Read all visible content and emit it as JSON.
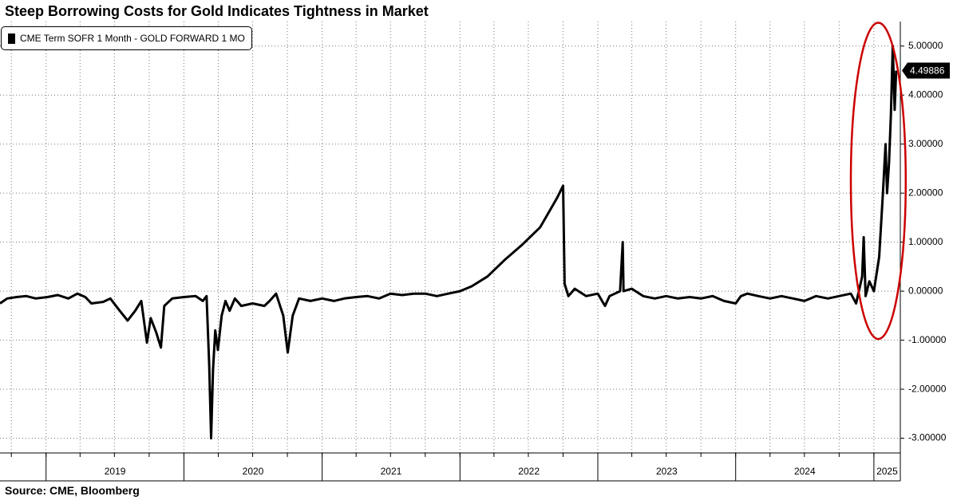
{
  "title": "Steep Borrowing Costs for Gold Indicates Tightness in Market",
  "source": "Source: CME, Bloomberg",
  "chart_data": {
    "type": "line",
    "title": "Steep Borrowing Costs for Gold Indicates Tightness in Market",
    "xlabel": "",
    "ylabel": "",
    "ylim": [
      -3.3,
      5.5
    ],
    "xlim": [
      "2018-09-01",
      "2025-03-12"
    ],
    "grid": true,
    "legend_position": "top-left",
    "line_color": "#000000",
    "highlight_color": "#cc0000",
    "y_ticks": [
      "5.00000",
      "4.00000",
      "3.00000",
      "2.00000",
      "1.00000",
      "0.00000",
      "-1.00000",
      "-2.00000",
      "-3.00000"
    ],
    "x_year_labels": [
      "2019",
      "2020",
      "2021",
      "2022",
      "2023",
      "2024",
      "2025"
    ],
    "last_value_label": "4.49886",
    "series": [
      {
        "name": "CME Term SOFR 1 Month - GOLD FORWARD 1 MO",
        "points": [
          [
            "2018-09-01",
            -0.25
          ],
          [
            "2018-09-20",
            -0.15
          ],
          [
            "2018-10-15",
            -0.12
          ],
          [
            "2018-11-10",
            -0.1
          ],
          [
            "2018-12-05",
            -0.15
          ],
          [
            "2019-01-05",
            -0.12
          ],
          [
            "2019-02-01",
            -0.08
          ],
          [
            "2019-03-01",
            -0.15
          ],
          [
            "2019-03-25",
            -0.05
          ],
          [
            "2019-04-15",
            -0.12
          ],
          [
            "2019-05-01",
            -0.25
          ],
          [
            "2019-06-01",
            -0.22
          ],
          [
            "2019-06-20",
            -0.15
          ],
          [
            "2019-07-15",
            -0.4
          ],
          [
            "2019-08-05",
            -0.6
          ],
          [
            "2019-08-25",
            -0.4
          ],
          [
            "2019-09-10",
            -0.2
          ],
          [
            "2019-09-25",
            -1.05
          ],
          [
            "2019-10-05",
            -0.55
          ],
          [
            "2019-10-20",
            -0.85
          ],
          [
            "2019-11-01",
            -1.15
          ],
          [
            "2019-11-10",
            -0.3
          ],
          [
            "2019-12-01",
            -0.15
          ],
          [
            "2020-01-01",
            -0.12
          ],
          [
            "2020-02-01",
            -0.1
          ],
          [
            "2020-02-20",
            -0.2
          ],
          [
            "2020-03-01",
            -0.1
          ],
          [
            "2020-03-08",
            -1.5
          ],
          [
            "2020-03-13",
            -3.0
          ],
          [
            "2020-03-18",
            -1.6
          ],
          [
            "2020-03-24",
            -0.8
          ],
          [
            "2020-03-31",
            -1.2
          ],
          [
            "2020-04-10",
            -0.5
          ],
          [
            "2020-04-20",
            -0.2
          ],
          [
            "2020-05-01",
            -0.4
          ],
          [
            "2020-05-15",
            -0.15
          ],
          [
            "2020-06-01",
            -0.3
          ],
          [
            "2020-07-01",
            -0.25
          ],
          [
            "2020-08-01",
            -0.3
          ],
          [
            "2020-08-15",
            -0.2
          ],
          [
            "2020-09-01",
            -0.05
          ],
          [
            "2020-09-20",
            -0.5
          ],
          [
            "2020-10-02",
            -1.25
          ],
          [
            "2020-10-15",
            -0.5
          ],
          [
            "2020-11-01",
            -0.15
          ],
          [
            "2020-12-01",
            -0.2
          ],
          [
            "2021-01-01",
            -0.15
          ],
          [
            "2021-02-01",
            -0.2
          ],
          [
            "2021-03-01",
            -0.15
          ],
          [
            "2021-04-01",
            -0.12
          ],
          [
            "2021-05-01",
            -0.1
          ],
          [
            "2021-06-01",
            -0.15
          ],
          [
            "2021-07-01",
            -0.05
          ],
          [
            "2021-08-01",
            -0.08
          ],
          [
            "2021-09-01",
            -0.05
          ],
          [
            "2021-10-01",
            -0.05
          ],
          [
            "2021-11-01",
            -0.1
          ],
          [
            "2021-12-01",
            -0.05
          ],
          [
            "2022-01-01",
            0.0
          ],
          [
            "2022-02-01",
            0.1
          ],
          [
            "2022-03-15",
            0.3
          ],
          [
            "2022-05-01",
            0.65
          ],
          [
            "2022-06-15",
            0.95
          ],
          [
            "2022-08-01",
            1.3
          ],
          [
            "2022-09-15",
            1.9
          ],
          [
            "2022-10-01",
            2.15
          ],
          [
            "2022-10-05",
            0.15
          ],
          [
            "2022-10-15",
            -0.1
          ],
          [
            "2022-11-01",
            0.05
          ],
          [
            "2022-12-01",
            -0.1
          ],
          [
            "2023-01-01",
            -0.05
          ],
          [
            "2023-01-20",
            -0.3
          ],
          [
            "2023-02-01",
            -0.1
          ],
          [
            "2023-03-01",
            0.0
          ],
          [
            "2023-03-08",
            1.0
          ],
          [
            "2023-03-10",
            0.0
          ],
          [
            "2023-04-01",
            0.05
          ],
          [
            "2023-05-01",
            -0.1
          ],
          [
            "2023-06-01",
            -0.15
          ],
          [
            "2023-07-01",
            -0.1
          ],
          [
            "2023-08-01",
            -0.15
          ],
          [
            "2023-09-01",
            -0.12
          ],
          [
            "2023-10-01",
            -0.15
          ],
          [
            "2023-11-01",
            -0.1
          ],
          [
            "2023-12-01",
            -0.2
          ],
          [
            "2024-01-01",
            -0.25
          ],
          [
            "2024-01-15",
            -0.1
          ],
          [
            "2024-02-01",
            -0.05
          ],
          [
            "2024-03-01",
            -0.1
          ],
          [
            "2024-04-01",
            -0.15
          ],
          [
            "2024-05-01",
            -0.1
          ],
          [
            "2024-06-01",
            -0.15
          ],
          [
            "2024-07-01",
            -0.2
          ],
          [
            "2024-08-01",
            -0.1
          ],
          [
            "2024-09-01",
            -0.15
          ],
          [
            "2024-10-01",
            -0.1
          ],
          [
            "2024-11-01",
            -0.05
          ],
          [
            "2024-11-15",
            -0.25
          ],
          [
            "2024-12-01",
            0.3
          ],
          [
            "2024-12-05",
            1.1
          ],
          [
            "2024-12-10",
            -0.1
          ],
          [
            "2024-12-20",
            0.2
          ],
          [
            "2025-01-01",
            0.0
          ],
          [
            "2025-01-15",
            0.7
          ],
          [
            "2025-01-25",
            2.0
          ],
          [
            "2025-02-01",
            3.0
          ],
          [
            "2025-02-05",
            2.0
          ],
          [
            "2025-02-10",
            2.6
          ],
          [
            "2025-02-15",
            3.6
          ],
          [
            "2025-02-20",
            5.0
          ],
          [
            "2025-02-25",
            3.7
          ],
          [
            "2025-03-01",
            4.5
          ]
        ]
      }
    ]
  }
}
